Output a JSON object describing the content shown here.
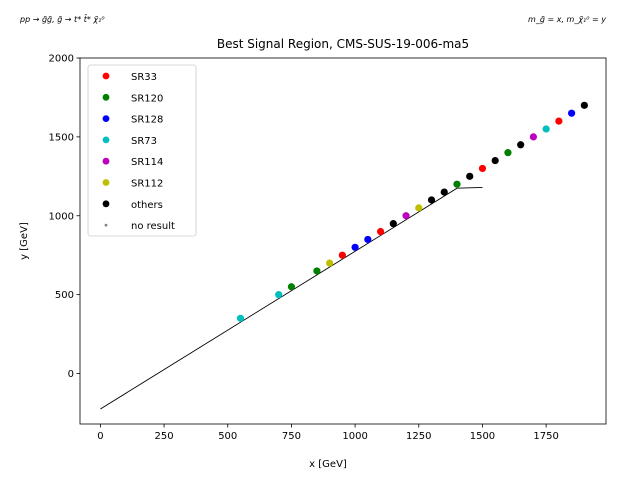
{
  "chart_data": {
    "type": "scatter",
    "title": "Best Signal Region, CMS-SUS-19-006-ma5",
    "process_label": "pp → g̃g̃, g̃ → t* t̄* χ̃₁⁰",
    "mass_label": "m_g̃ = x, m_χ̃₁⁰ = y",
    "xlabel": "x [GeV]",
    "ylabel": "y [GeV]",
    "xlim": [
      -80,
      1985
    ],
    "ylim": [
      -320,
      2000
    ],
    "xticks": [
      0,
      250,
      500,
      750,
      1000,
      1250,
      1500,
      1750
    ],
    "yticks": [
      0,
      500,
      1000,
      1500,
      2000
    ],
    "grid": false,
    "legend_position": "upper-left",
    "series": [
      {
        "name": "SR33",
        "color": "#ff0000",
        "points": [
          [
            950,
            750
          ],
          [
            1100,
            900
          ],
          [
            1500,
            1300
          ],
          [
            1800,
            1600
          ]
        ]
      },
      {
        "name": "SR120",
        "color": "#008000",
        "points": [
          [
            750,
            550
          ],
          [
            850,
            650
          ],
          [
            1400,
            1200
          ],
          [
            1600,
            1400
          ]
        ]
      },
      {
        "name": "SR128",
        "color": "#0000ff",
        "points": [
          [
            1000,
            800
          ],
          [
            1050,
            850
          ],
          [
            1850,
            1650
          ]
        ]
      },
      {
        "name": "SR73",
        "color": "#00bfbf",
        "points": [
          [
            550,
            350
          ],
          [
            700,
            500
          ],
          [
            1750,
            1550
          ]
        ]
      },
      {
        "name": "SR114",
        "color": "#bf00bf",
        "points": [
          [
            1200,
            1000
          ],
          [
            1700,
            1500
          ]
        ]
      },
      {
        "name": "SR112",
        "color": "#bfbf00",
        "points": [
          [
            900,
            700
          ],
          [
            1250,
            1050
          ]
        ]
      },
      {
        "name": "others",
        "color": "#000000",
        "points": [
          [
            1150,
            950
          ],
          [
            1300,
            1100
          ],
          [
            1350,
            1150
          ],
          [
            1450,
            1250
          ],
          [
            1550,
            1350
          ],
          [
            1650,
            1450
          ],
          [
            1900,
            1700
          ]
        ]
      },
      {
        "name": "no result",
        "color": "#808080",
        "small": true,
        "points": []
      }
    ],
    "exclusion_line": [
      [
        0,
        -225
      ],
      [
        1400,
        1175
      ],
      [
        1500,
        1180
      ]
    ]
  }
}
